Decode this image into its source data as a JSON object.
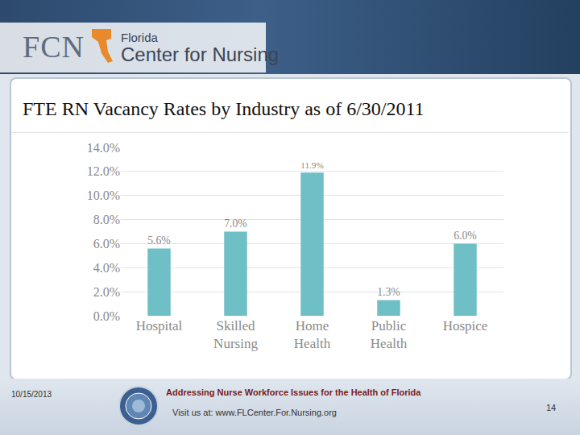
{
  "slide": {
    "logo": "FCN",
    "org_line1": "Florida",
    "org_line2": "Center for Nursing",
    "date": "10/15/2013",
    "tagline": "Addressing Nurse Workforce Issues for the Health of Florida",
    "url": "Visit us at: www.FLCenter.For.Nursing.org",
    "page": 14
  },
  "chart_data": {
    "type": "bar",
    "title": "FTE RN Vacancy Rates by Industry as of 6/30/2011",
    "categories": [
      "Hospital",
      "Skilled Nursing",
      "Home Health",
      "Public Health",
      "Hospice"
    ],
    "values": [
      5.6,
      7.0,
      11.9,
      1.3,
      6.0
    ],
    "value_labels": [
      "5.6%",
      "7.0%",
      "11.9%",
      "1.3%",
      "6.0%"
    ],
    "data_labels": true,
    "color": "#6fbfc6",
    "ylim": [
      0,
      14
    ],
    "yticks": [
      {
        "value": 0,
        "label": "0.0%"
      },
      {
        "value": 2,
        "label": "2.0%"
      },
      {
        "value": 4,
        "label": "4.0%"
      },
      {
        "value": 6,
        "label": "6.0%"
      },
      {
        "value": 8,
        "label": "8.0%"
      },
      {
        "value": 10,
        "label": "10.0%"
      },
      {
        "value": 12,
        "label": "12.0%"
      },
      {
        "value": 14,
        "label": "14.0%"
      }
    ],
    "grid": true
  }
}
